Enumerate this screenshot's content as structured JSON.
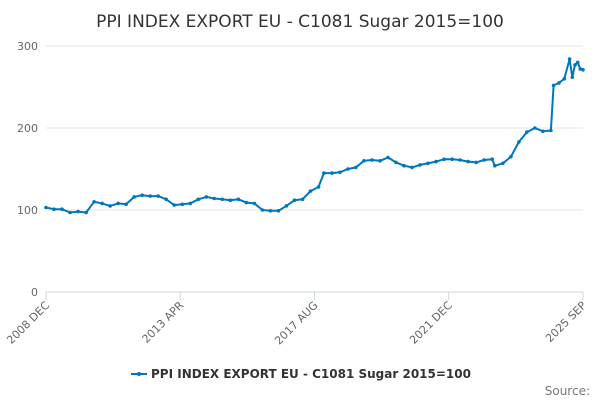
{
  "chart_data": {
    "type": "line",
    "title": "PPI INDEX EXPORT EU - C1081 Sugar 2015=100",
    "xlabel": "",
    "ylabel": "",
    "x_range": [
      "2008-12",
      "2025-09"
    ],
    "ylim": [
      0,
      300
    ],
    "y_ticks": [
      "0",
      "100",
      "200",
      "300"
    ],
    "x_tick_labels": [
      "2008 DEC",
      "2013 APR",
      "2017 AUG",
      "2021 DEC",
      "2025 SEP"
    ],
    "grid": true,
    "legend_position": "bottom",
    "series": [
      {
        "name": "PPI INDEX EXPORT EU - C1081 Sugar 2015=100",
        "color": "#0077bd",
        "points": [
          [
            "2008-12",
            103
          ],
          [
            "2009-03",
            101
          ],
          [
            "2009-06",
            101
          ],
          [
            "2009-09",
            97
          ],
          [
            "2009-12",
            98
          ],
          [
            "2010-03",
            97
          ],
          [
            "2010-06",
            110
          ],
          [
            "2010-09",
            108
          ],
          [
            "2010-12",
            105
          ],
          [
            "2011-03",
            108
          ],
          [
            "2011-06",
            107
          ],
          [
            "2011-09",
            116
          ],
          [
            "2011-12",
            118
          ],
          [
            "2012-03",
            117
          ],
          [
            "2012-06",
            117
          ],
          [
            "2012-09",
            113
          ],
          [
            "2012-12",
            106
          ],
          [
            "2013-03",
            107
          ],
          [
            "2013-06",
            108
          ],
          [
            "2013-09",
            113
          ],
          [
            "2013-12",
            116
          ],
          [
            "2014-03",
            114
          ],
          [
            "2014-06",
            113
          ],
          [
            "2014-09",
            112
          ],
          [
            "2014-12",
            113
          ],
          [
            "2015-03",
            109
          ],
          [
            "2015-06",
            108
          ],
          [
            "2015-09",
            100
          ],
          [
            "2015-12",
            99
          ],
          [
            "2016-03",
            99
          ],
          [
            "2016-06",
            105
          ],
          [
            "2016-09",
            112
          ],
          [
            "2016-12",
            113
          ],
          [
            "2017-03",
            123
          ],
          [
            "2017-06",
            128
          ],
          [
            "2017-08",
            145
          ],
          [
            "2017-11",
            145
          ],
          [
            "2018-02",
            146
          ],
          [
            "2018-05",
            150
          ],
          [
            "2018-08",
            152
          ],
          [
            "2018-11",
            160
          ],
          [
            "2019-02",
            161
          ],
          [
            "2019-05",
            160
          ],
          [
            "2019-08",
            164
          ],
          [
            "2019-11",
            158
          ],
          [
            "2020-02",
            154
          ],
          [
            "2020-05",
            152
          ],
          [
            "2020-08",
            155
          ],
          [
            "2020-11",
            157
          ],
          [
            "2021-02",
            159
          ],
          [
            "2021-05",
            162
          ],
          [
            "2021-08",
            162
          ],
          [
            "2021-11",
            161
          ],
          [
            "2022-02",
            159
          ],
          [
            "2022-05",
            158
          ],
          [
            "2022-08",
            161
          ],
          [
            "2022-11",
            162
          ],
          [
            "2022-12",
            154
          ],
          [
            "2023-03",
            157
          ],
          [
            "2023-06",
            165
          ],
          [
            "2023-09",
            183
          ],
          [
            "2023-12",
            195
          ],
          [
            "2024-03",
            200
          ],
          [
            "2024-06",
            196
          ],
          [
            "2024-09",
            197
          ],
          [
            "2024-10",
            252
          ],
          [
            "2024-12",
            255
          ],
          [
            "2025-02",
            260
          ],
          [
            "2025-04",
            284
          ],
          [
            "2025-05",
            262
          ],
          [
            "2025-06",
            277
          ],
          [
            "2025-07",
            280
          ],
          [
            "2025-08",
            272
          ],
          [
            "2025-09",
            271
          ]
        ]
      }
    ],
    "credits": "Source:"
  }
}
